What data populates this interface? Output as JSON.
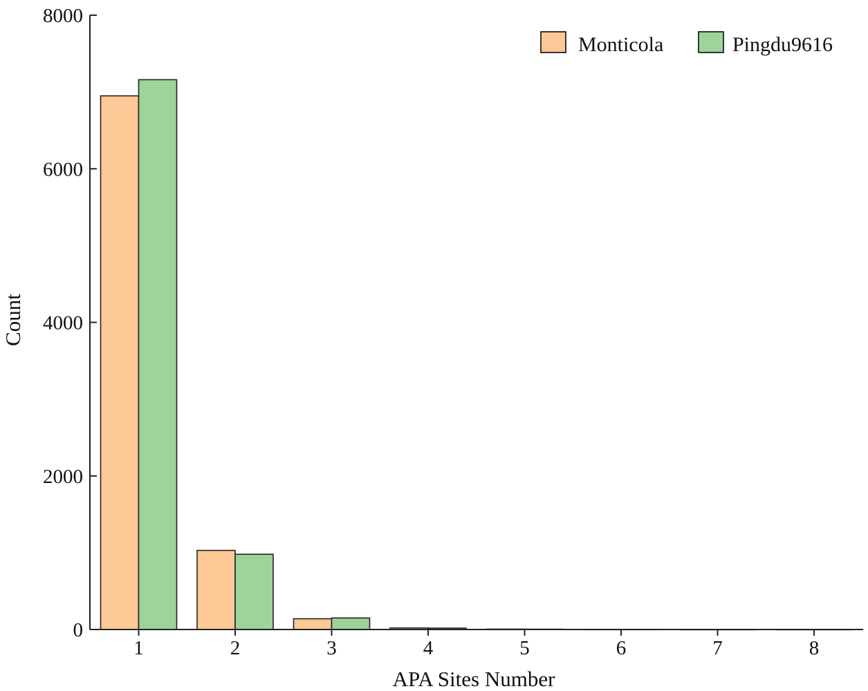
{
  "chart_data": {
    "type": "bar",
    "title": "",
    "xlabel": "APA Sites Number",
    "ylabel": "Count",
    "categories": [
      "1",
      "2",
      "3",
      "4",
      "5",
      "6",
      "7",
      "8"
    ],
    "series": [
      {
        "name": "Monticola",
        "color": "#FCC896",
        "values": [
          6950,
          1030,
          140,
          20,
          5,
          2,
          1,
          1
        ]
      },
      {
        "name": "Pingdu9616",
        "color": "#9DD49A",
        "values": [
          7160,
          980,
          150,
          18,
          4,
          2,
          1,
          1
        ]
      }
    ],
    "ylim": [
      0,
      8000
    ],
    "yticks": [
      "0",
      "2000",
      "4000",
      "6000",
      "8000"
    ],
    "grid": false,
    "legend_position": "top-right"
  }
}
